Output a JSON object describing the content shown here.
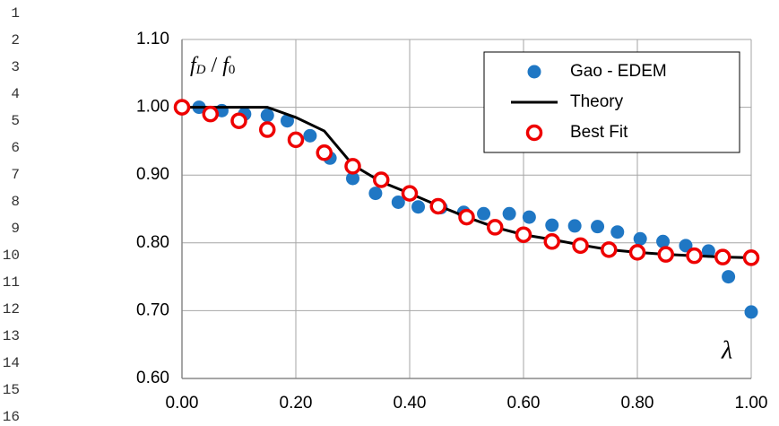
{
  "line_numbers": [
    "1",
    "2",
    "3",
    "4",
    "5",
    "6",
    "7",
    "8",
    "9",
    "10",
    "11",
    "12",
    "13",
    "14",
    "15",
    "16"
  ],
  "chart_data": {
    "type": "scatter",
    "ylabel": {
      "f1": "f",
      "sub1": "D",
      "sep": " / ",
      "f2": "f",
      "sub2": "0"
    },
    "xlabel": "λ",
    "xlim": [
      0,
      1
    ],
    "ylim": [
      0.6,
      1.1
    ],
    "xticks": [
      {
        "value": 0,
        "label": "0.00"
      },
      {
        "value": 0.2,
        "label": "0.20"
      },
      {
        "value": 0.4,
        "label": "0.40"
      },
      {
        "value": 0.6,
        "label": "0.60"
      },
      {
        "value": 0.8,
        "label": "0.80"
      },
      {
        "value": 1,
        "label": "1.00"
      }
    ],
    "yticks": [
      {
        "value": 0.6,
        "label": "0.60"
      },
      {
        "value": 0.7,
        "label": "0.70"
      },
      {
        "value": 0.8,
        "label": "0.80"
      },
      {
        "value": 0.9,
        "label": "0.90"
      },
      {
        "value": 1,
        "label": "1.00"
      },
      {
        "value": 1.1,
        "label": "1.10"
      }
    ],
    "grid": true,
    "legend": "upper right",
    "series": [
      {
        "name": "Gao - EDEM",
        "color": "#1f77c4",
        "style": "marker",
        "x": [
          0.03,
          0.07,
          0.11,
          0.15,
          0.185,
          0.225,
          0.26,
          0.3,
          0.34,
          0.38,
          0.415,
          0.455,
          0.495,
          0.53,
          0.575,
          0.61,
          0.65,
          0.69,
          0.73,
          0.765,
          0.805,
          0.845,
          0.885,
          0.925,
          0.96,
          1.0
        ],
        "values": [
          1.0,
          0.995,
          0.99,
          0.988,
          0.98,
          0.958,
          0.925,
          0.895,
          0.873,
          0.86,
          0.853,
          0.852,
          0.845,
          0.843,
          0.843,
          0.838,
          0.826,
          0.825,
          0.824,
          0.816,
          0.806,
          0.802,
          0.796,
          0.788,
          0.75,
          0.698
        ]
      },
      {
        "name": "Theory",
        "color": "#000000",
        "style": "line",
        "x": [
          0,
          0.05,
          0.1,
          0.15,
          0.2,
          0.25,
          0.3,
          0.35,
          0.4,
          0.45,
          0.5,
          0.55,
          0.6,
          0.65,
          0.7,
          0.75,
          0.8,
          0.85,
          0.9,
          0.95,
          1.0
        ],
        "values": [
          1.0,
          1.0,
          1.0,
          1.0,
          0.985,
          0.965,
          0.915,
          0.89,
          0.873,
          0.855,
          0.838,
          0.823,
          0.812,
          0.805,
          0.797,
          0.79,
          0.786,
          0.783,
          0.781,
          0.779,
          0.778
        ]
      },
      {
        "name": "Best Fit",
        "color": "#ee0000",
        "style": "open-marker",
        "x": [
          0,
          0.05,
          0.1,
          0.15,
          0.2,
          0.25,
          0.3,
          0.35,
          0.4,
          0.45,
          0.5,
          0.55,
          0.6,
          0.65,
          0.7,
          0.75,
          0.8,
          0.85,
          0.9,
          0.95,
          1.0
        ],
        "values": [
          1.0,
          0.99,
          0.98,
          0.967,
          0.952,
          0.933,
          0.913,
          0.893,
          0.873,
          0.854,
          0.838,
          0.823,
          0.812,
          0.802,
          0.796,
          0.79,
          0.786,
          0.783,
          0.781,
          0.779,
          0.778
        ]
      }
    ]
  }
}
